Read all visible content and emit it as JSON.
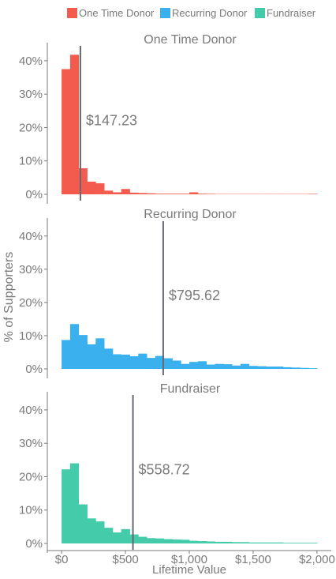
{
  "chart_data": {
    "type": "histogram",
    "ylabel": "% of Supporters",
    "xlabel": "Lifetime Value",
    "xlim": [
      -50,
      2050
    ],
    "ylim": [
      0,
      44
    ],
    "x_ticks": [
      0,
      500,
      1000,
      1500,
      2000
    ],
    "x_tick_labels": [
      "$0",
      "$500",
      "$1,000",
      "$1,500",
      "$2,000"
    ],
    "y_ticks": [
      0,
      10,
      20,
      30,
      40
    ],
    "y_tick_labels": [
      "0%",
      "10%",
      "20%",
      "30%",
      "40%"
    ],
    "bin_width": 66.7,
    "bin_start": 0,
    "legend": {
      "position": "top",
      "items": [
        {
          "label": "One Time Donor",
          "color": "#f35b4f"
        },
        {
          "label": "Recurring Donor",
          "color": "#3ab0ee"
        },
        {
          "label": "Fundraiser",
          "color": "#44cbaa"
        }
      ]
    },
    "panels": [
      {
        "title": "One Time Donor",
        "color": "#f35b4f",
        "mean": 147.23,
        "mean_label": "$147.23",
        "values": [
          37.5,
          41.8,
          7.8,
          3.8,
          3.3,
          1.1,
          0.6,
          1.6,
          0.5,
          0.4,
          0.3,
          0.2,
          0.2,
          0.2,
          0.2,
          0.6,
          0.2,
          0.15,
          0.1,
          0.1,
          0.1,
          0.1,
          0.1,
          0.1,
          0.1,
          0.1,
          0.1,
          0.1,
          0.1,
          0.15
        ]
      },
      {
        "title": "Recurring Donor",
        "color": "#3ab0ee",
        "mean": 795.62,
        "mean_label": "$795.62",
        "values": [
          8.7,
          13.5,
          10.2,
          7.4,
          9.2,
          6.1,
          4.4,
          4.3,
          3.8,
          4.6,
          3.3,
          3.9,
          3.2,
          2.5,
          1.5,
          2.1,
          2.3,
          1.3,
          1.5,
          1.4,
          1.0,
          1.5,
          0.9,
          0.8,
          0.7,
          0.7,
          0.5,
          0.4,
          0.3,
          0.2
        ]
      },
      {
        "title": "Fundraiser",
        "color": "#44cbaa",
        "mean": 558.72,
        "mean_label": "$558.72",
        "values": [
          22.2,
          24.0,
          11.7,
          7.5,
          6.6,
          4.7,
          3.3,
          4.3,
          2.7,
          2.0,
          1.6,
          1.5,
          1.3,
          1.2,
          1.1,
          0.8,
          0.7,
          0.6,
          0.5,
          0.5,
          0.4,
          0.4,
          0.3,
          0.3,
          0.3,
          0.3,
          0.2,
          0.2,
          0.2,
          0.2
        ]
      }
    ]
  }
}
